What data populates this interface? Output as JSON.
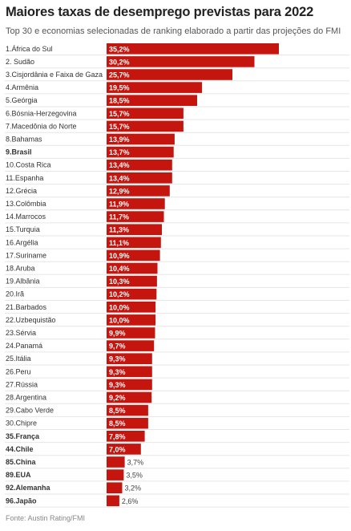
{
  "chart_data": {
    "type": "bar",
    "orientation": "horizontal",
    "title": "Maiores taxas de desemprego previstas para 2022",
    "subtitle": "Top 30 e economias selecionadas de ranking elaborado a partir das projeções do FMI",
    "source": "Fonte: Austin Rating/FMI",
    "categories": [
      "1.África do Sul",
      "2. Sudão",
      "3.Cisjordânia e Faixa de Gaza",
      "4.Armênia",
      "5.Geórgia",
      "6.Bósnia-Herzegovina",
      "7.Macedônia do Norte",
      "8.Bahamas",
      "9.Brasil",
      "10.Costa Rica",
      "11.Espanha",
      "12.Grécia",
      "13.Colômbia",
      "14.Marrocos",
      "15.Turquia",
      "16.Argélia",
      "17.Suriname",
      "18.Aruba",
      "19.Albânia",
      "20.Irã",
      "21.Barbados",
      "22.Uzbequistão",
      "23.Sérvia",
      "24.Panamá",
      "25.Itália",
      "26.Peru",
      "27.Rússia",
      "28.Argentina",
      "29.Cabo Verde",
      "30.Chipre",
      "35.França",
      "44.Chile",
      "85.China",
      "89.EUA",
      "92.Alemanha",
      "96.Japão"
    ],
    "values": [
      35.2,
      30.2,
      25.7,
      19.5,
      18.5,
      15.7,
      15.7,
      13.9,
      13.7,
      13.4,
      13.4,
      12.9,
      11.9,
      11.7,
      11.3,
      11.1,
      10.9,
      10.4,
      10.3,
      10.2,
      10.0,
      10.0,
      9.9,
      9.7,
      9.3,
      9.3,
      9.3,
      9.2,
      8.5,
      8.5,
      7.8,
      7.0,
      3.7,
      3.5,
      3.2,
      2.6
    ],
    "value_labels": [
      "35,2%",
      "30,2%",
      "25,7%",
      "19,5%",
      "18,5%",
      "15,7%",
      "15,7%",
      "13,9%",
      "13,7%",
      "13,4%",
      "13,4%",
      "12,9%",
      "11,9%",
      "11,7%",
      "11,3%",
      "11,1%",
      "10,9%",
      "10,4%",
      "10,3%",
      "10,2%",
      "10,0%",
      "10,0%",
      "9,9%",
      "9,7%",
      "9,3%",
      "9,3%",
      "9,3%",
      "9,2%",
      "8,5%",
      "8,5%",
      "7,8%",
      "7,0%",
      "3,7%",
      "3,5%",
      "3,2%",
      "2,6%"
    ],
    "highlighted": [
      "9.Brasil",
      "35.França",
      "44.Chile",
      "85.China",
      "89.EUA",
      "92.Alemanha",
      "96.Japão"
    ],
    "xlim": [
      0,
      35.2
    ],
    "grid": false,
    "bar_color": "#c4150f"
  }
}
